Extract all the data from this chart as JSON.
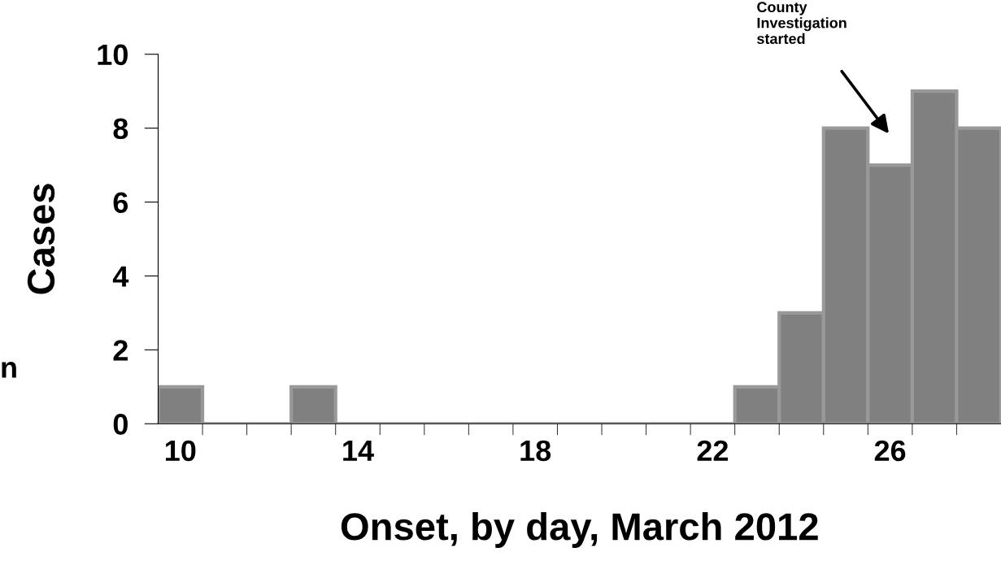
{
  "chart_data": {
    "type": "histogram",
    "xlabel": "Onset, by day, March 2012",
    "ylabel": "Cases",
    "bins": [
      9.5,
      10.5,
      11.5,
      12.5,
      13.5,
      14.5,
      15.5,
      16.5,
      17.5,
      18.5,
      19.5,
      20.5,
      21.5,
      22.5,
      23.5,
      24.5,
      25.5,
      26.5,
      27.5,
      28.5
    ],
    "values": [
      1,
      0,
      0,
      1,
      0,
      0,
      0,
      0,
      0,
      0,
      0,
      0,
      0,
      1,
      3,
      8,
      7,
      9,
      8
    ],
    "color": "#808080",
    "xlim": [
      9.5,
      28.5
    ],
    "xticks": [
      10,
      14,
      18,
      22,
      26,
      {
        "value": 10.5,
        "label": null
      },
      {
        "value": 11.5,
        "label": null
      },
      {
        "value": 12.5,
        "label": null
      },
      {
        "value": 13.5,
        "label": null
      },
      {
        "value": 14.5,
        "label": null
      },
      {
        "value": 15.5,
        "label": null
      },
      {
        "value": 16.5,
        "label": null
      },
      {
        "value": 17.5,
        "label": null
      },
      {
        "value": 18.5,
        "label": null
      },
      {
        "value": 19.5,
        "label": null
      },
      {
        "value": 20.5,
        "label": null
      },
      {
        "value": 21.5,
        "label": null
      },
      {
        "value": 22.5,
        "label": null
      },
      {
        "value": 23.5,
        "label": null
      },
      {
        "value": 24.5,
        "label": null
      },
      {
        "value": 25.5,
        "label": null
      },
      {
        "value": 26.5,
        "label": null
      },
      {
        "value": 27.5,
        "label": null
      }
    ],
    "ylim": [
      0,
      10
    ],
    "yticks": [
      0,
      2,
      4,
      6,
      8,
      10
    ],
    "grid": false,
    "legend": false,
    "annotations": [
      "County\nInvestigation\nstarted",
      "n"
    ]
  }
}
